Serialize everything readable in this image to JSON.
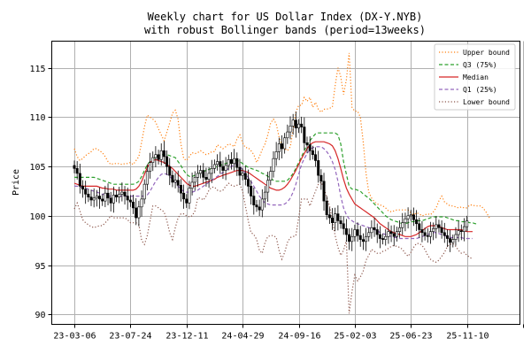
{
  "chart_data": {
    "type": "line",
    "title": [
      "Weekly chart for US Dollar Index (DX-Y.NYB)",
      "with robust Bollinger bands (period=13weeks)"
    ],
    "xlabel": "",
    "ylabel": "Price",
    "ylim": [
      89,
      117.7
    ],
    "y_ticks": [
      90,
      95,
      100,
      105,
      110,
      115
    ],
    "x_tick_labels": [
      "23-03-06",
      "23-07-24",
      "23-12-11",
      "24-04-29",
      "24-09-16",
      "25-02-03",
      "25-06-23",
      "25-11-10",
      ""
    ],
    "grid": true,
    "legend_position": "top-right",
    "week_count": 155,
    "colors": {
      "upper": "#ff7f0e",
      "q3": "#2ca02c",
      "median": "#d62728",
      "q1": "#9467bd",
      "lower": "#8c564b",
      "candle": "#000000"
    },
    "series": [
      {
        "key": "upper",
        "name": "Upper bound",
        "style": "dotted",
        "values": [
          106.8,
          106.0,
          105.6,
          105.8,
          106.1,
          106.3,
          106.5,
          106.8,
          106.8,
          106.6,
          106.4,
          106.0,
          105.5,
          105.2,
          105.3,
          105.3,
          105.3,
          105.2,
          105.3,
          105.3,
          105.4,
          105.2,
          105.6,
          106.0,
          107.5,
          109.0,
          110.2,
          110.0,
          109.8,
          109.5,
          108.8,
          108.2,
          107.6,
          108.5,
          109.4,
          110.4,
          110.7,
          109.8,
          107.3,
          105.8,
          105.6,
          106.0,
          106.4,
          106.3,
          106.4,
          106.6,
          106.4,
          106.2,
          106.3,
          106.5,
          106.5,
          107.2,
          107.0,
          106.8,
          107.0,
          107.3,
          107.2,
          107.0,
          107.8,
          108.2,
          107.4,
          106.9,
          106.9,
          106.6,
          106.2,
          105.4,
          106.0,
          106.7,
          107.3,
          108.2,
          109.4,
          109.8,
          109.3,
          108.0,
          107.1,
          106.8,
          106.6,
          107.0,
          108.7,
          110.5,
          111.2,
          111.2,
          112.0,
          111.6,
          112.0,
          111.0,
          111.5,
          110.8,
          110.5,
          110.8,
          110.8,
          110.9,
          111.0,
          113.2,
          115.0,
          114.1,
          112.3,
          113.8,
          116.5,
          111.0,
          110.6,
          110.6,
          110.0,
          107.5,
          104.3,
          102.4,
          101.8,
          101.4,
          101.2,
          101.1,
          101.0,
          100.8,
          100.5,
          100.4,
          100.5,
          100.6,
          100.6,
          100.6,
          100.6,
          100.6,
          100.3,
          100.1,
          100.3,
          100.2,
          100.0,
          100.1,
          100.2,
          100.1,
          100.4,
          100.8,
          101.5,
          102.0,
          101.4,
          101.2,
          101.0,
          101.0,
          100.9,
          100.8,
          100.9,
          100.8,
          100.8,
          101.1,
          101.1,
          101.0,
          101.0,
          101.0,
          100.7,
          100.3,
          99.8,
          null,
          null,
          null,
          null,
          null,
          null
        ]
      },
      {
        "key": "q3",
        "name": "Q3 (75%)",
        "style": "dashed",
        "values": [
          103.9,
          103.9,
          103.9,
          103.9,
          103.9,
          103.9,
          103.9,
          103.9,
          103.8,
          103.7,
          103.6,
          103.5,
          103.4,
          103.3,
          103.2,
          103.2,
          103.2,
          103.2,
          103.2,
          103.2,
          103.2,
          103.2,
          103.3,
          103.5,
          104.0,
          104.6,
          105.2,
          105.5,
          105.7,
          106.0,
          106.1,
          106.2,
          106.2,
          106.2,
          106.1,
          106.0,
          105.9,
          105.5,
          105.1,
          104.6,
          104.2,
          104.0,
          104.0,
          104.1,
          104.2,
          104.4,
          104.5,
          104.6,
          104.7,
          104.8,
          104.9,
          105.0,
          105.1,
          105.2,
          105.3,
          105.4,
          105.5,
          105.6,
          105.6,
          105.5,
          105.3,
          105.1,
          104.9,
          104.8,
          104.7,
          104.6,
          104.5,
          104.3,
          104.2,
          104.0,
          103.8,
          103.6,
          103.5,
          103.5,
          103.5,
          103.5,
          103.6,
          103.9,
          104.3,
          104.8,
          105.4,
          106.0,
          106.6,
          107.2,
          107.6,
          108.0,
          108.3,
          108.4,
          108.4,
          108.4,
          108.4,
          108.4,
          108.4,
          108.4,
          108.2,
          107.3,
          105.5,
          104.2,
          103.0,
          102.7,
          102.7,
          102.6,
          102.5,
          102.2,
          102.0,
          101.8,
          101.5,
          101.2,
          100.9,
          100.6,
          100.3,
          100.0,
          99.8,
          99.6,
          99.5,
          99.4,
          99.3,
          99.2,
          99.2,
          99.3,
          99.4,
          99.4,
          99.5,
          99.5,
          99.5,
          99.6,
          99.7,
          99.8,
          99.9,
          99.9,
          99.9,
          99.9,
          99.9,
          99.8,
          99.7,
          99.6,
          99.5,
          99.5,
          99.4,
          99.4,
          99.4,
          99.3,
          99.3,
          99.2,
          99.2,
          null,
          null,
          null,
          null,
          null,
          null,
          null,
          null,
          null,
          null
        ]
      },
      {
        "key": "median",
        "name": "Median",
        "style": "solid",
        "values": [
          103.3,
          103.2,
          103.1,
          103.0,
          103.0,
          103.0,
          103.0,
          103.0,
          103.0,
          102.9,
          102.8,
          102.8,
          102.7,
          102.7,
          102.7,
          102.6,
          102.6,
          102.6,
          102.6,
          102.6,
          102.6,
          102.6,
          102.7,
          103.0,
          103.5,
          104.2,
          104.9,
          105.4,
          105.6,
          105.7,
          105.6,
          105.5,
          105.4,
          105.2,
          105.0,
          104.8,
          104.5,
          104.2,
          103.9,
          103.6,
          103.3,
          103.1,
          103.0,
          103.0,
          103.1,
          103.2,
          103.3,
          103.4,
          103.5,
          103.6,
          103.7,
          103.9,
          104.0,
          104.1,
          104.2,
          104.3,
          104.4,
          104.5,
          104.6,
          104.6,
          104.6,
          104.5,
          104.4,
          104.2,
          104.0,
          103.8,
          103.6,
          103.4,
          103.2,
          103.0,
          102.8,
          102.7,
          102.6,
          102.6,
          102.7,
          102.9,
          103.2,
          103.6,
          104.1,
          104.6,
          105.2,
          105.8,
          106.3,
          106.8,
          107.2,
          107.4,
          107.5,
          107.5,
          107.5,
          107.5,
          107.4,
          107.3,
          107.1,
          106.6,
          105.8,
          104.8,
          103.7,
          102.8,
          102.2,
          101.7,
          101.2,
          101.0,
          100.8,
          100.6,
          100.4,
          100.2,
          100.0,
          99.8,
          99.5,
          99.2,
          99.0,
          98.8,
          98.6,
          98.4,
          98.3,
          98.2,
          98.1,
          98.0,
          97.9,
          97.9,
          97.9,
          98.0,
          98.1,
          98.3,
          98.5,
          98.7,
          98.9,
          99.0,
          99.0,
          99.0,
          98.9,
          98.8,
          98.7,
          98.6,
          98.6,
          98.6,
          98.6,
          98.6,
          98.6,
          98.5,
          98.4,
          98.4,
          98.4,
          null,
          null,
          null,
          null,
          null,
          null,
          null,
          null,
          null,
          null,
          null
        ]
      },
      {
        "key": "q1",
        "name": "Q1 (25%)",
        "style": "dashed",
        "values": [
          103.0,
          103.0,
          102.9,
          102.9,
          102.8,
          102.7,
          102.6,
          102.5,
          102.4,
          102.3,
          102.2,
          102.1,
          102.0,
          102.0,
          102.0,
          102.0,
          102.0,
          102.0,
          102.0,
          102.0,
          102.0,
          102.0,
          102.0,
          102.0,
          102.0,
          102.0,
          102.1,
          102.5,
          103.0,
          103.5,
          103.9,
          104.2,
          104.3,
          104.2,
          104.0,
          103.7,
          103.4,
          103.0,
          102.7,
          102.5,
          102.4,
          102.4,
          102.4,
          102.5,
          102.6,
          102.8,
          103.0,
          103.2,
          103.4,
          103.6,
          103.8,
          104.0,
          104.2,
          104.4,
          104.6,
          104.8,
          105.0,
          105.2,
          105.2,
          105.0,
          104.7,
          104.3,
          103.9,
          103.5,
          103.0,
          102.5,
          102.0,
          101.6,
          101.3,
          101.2,
          101.1,
          101.1,
          101.1,
          101.1,
          101.1,
          101.2,
          101.4,
          101.8,
          102.4,
          103.2,
          104.2,
          105.2,
          105.8,
          106.3,
          106.7,
          106.9,
          107.0,
          107.0,
          107.0,
          106.8,
          106.5,
          106.1,
          105.5,
          104.7,
          103.5,
          102.0,
          100.8,
          100.1,
          99.7,
          99.5,
          99.3,
          99.2,
          99.1,
          99.0,
          98.9,
          98.8,
          98.7,
          98.6,
          98.5,
          98.3,
          98.2,
          98.1,
          98.0,
          97.9,
          97.8,
          97.8,
          97.7,
          97.7,
          97.7,
          97.7,
          97.7,
          97.7,
          97.7,
          97.8,
          97.9,
          98.0,
          98.1,
          98.2,
          98.3,
          98.3,
          98.2,
          98.1,
          98.0,
          97.9,
          97.8,
          97.8,
          97.8,
          97.8,
          97.8,
          97.7,
          97.7,
          97.7,
          97.7,
          null,
          null,
          null,
          null,
          null,
          null,
          null,
          null,
          null,
          null,
          null,
          null
        ]
      },
      {
        "key": "lower",
        "name": "Lower bound",
        "style": "dotted",
        "values": [
          100.7,
          101.3,
          100.5,
          99.6,
          99.3,
          99.1,
          98.9,
          98.8,
          98.9,
          99.0,
          99.0,
          99.3,
          99.6,
          100.0,
          99.8,
          99.8,
          99.8,
          99.8,
          99.8,
          99.6,
          99.3,
          99.3,
          99.3,
          99.1,
          97.5,
          97.1,
          98.0,
          99.5,
          101.0,
          101.0,
          100.8,
          100.6,
          100.4,
          99.5,
          98.3,
          97.6,
          98.8,
          99.8,
          100.2,
          100.2,
          100.0,
          99.9,
          100.0,
          100.5,
          101.8,
          101.8,
          101.6,
          102.0,
          102.6,
          102.9,
          102.9,
          102.6,
          102.5,
          102.6,
          103.0,
          103.3,
          103.1,
          103.0,
          103.1,
          103.2,
          102.5,
          101.0,
          99.5,
          98.3,
          98.1,
          97.6,
          96.5,
          96.2,
          97.3,
          97.9,
          98.0,
          98.0,
          97.8,
          96.5,
          95.6,
          96.3,
          97.3,
          97.8,
          97.9,
          98.0,
          99.8,
          101.7,
          101.7,
          101.7,
          101.0,
          101.8,
          102.5,
          103.2,
          103.4,
          102.8,
          101.9,
          101.0,
          99.5,
          98.0,
          96.8,
          96.0,
          96.5,
          97.5,
          90.1,
          92.3,
          94.0,
          93.4,
          93.8,
          94.4,
          95.5,
          96.0,
          96.6,
          96.4,
          96.2,
          96.2,
          96.4,
          96.5,
          96.7,
          96.9,
          97.0,
          96.9,
          96.8,
          96.6,
          96.2,
          95.9,
          96.3,
          96.8,
          97.2,
          97.2,
          97.0,
          96.6,
          96.0,
          95.6,
          95.4,
          95.3,
          95.5,
          95.9,
          96.3,
          96.9,
          97.1,
          97.2,
          96.9,
          96.5,
          96.2,
          96.3,
          96.0,
          95.8,
          95.6,
          null,
          null,
          null,
          null,
          null,
          null,
          null,
          null,
          null,
          null,
          null,
          null,
          null
        ]
      }
    ],
    "candles_close": [
      104.8,
      104.3,
      103.0,
      102.7,
      102.2,
      101.9,
      101.6,
      101.8,
      102.0,
      101.7,
      101.5,
      102.3,
      101.8,
      101.3,
      102.1,
      101.9,
      102.2,
      102.4,
      102.0,
      101.6,
      101.4,
      100.8,
      99.8,
      100.9,
      101.7,
      103.2,
      104.5,
      105.4,
      105.9,
      106.2,
      105.7,
      106.6,
      106.0,
      105.0,
      104.1,
      103.4,
      103.6,
      103.1,
      102.3,
      101.7,
      101.3,
      102.8,
      103.4,
      103.9,
      104.3,
      104.6,
      103.9,
      103.7,
      104.3,
      104.8,
      105.2,
      105.5,
      105.0,
      104.6,
      105.1,
      105.7,
      105.3,
      105.8,
      104.9,
      104.1,
      104.3,
      103.7,
      103.0,
      102.0,
      101.1,
      100.9,
      100.6,
      101.7,
      102.4,
      103.6,
      104.5,
      105.8,
      106.5,
      107.3,
      106.8,
      107.9,
      108.5,
      109.1,
      109.7,
      108.9,
      109.3,
      109.0,
      107.4,
      107.2,
      106.6,
      106.2,
      105.6,
      104.1,
      103.5,
      101.5,
      100.1,
      99.8,
      99.3,
      100.2,
      99.5,
      99.2,
      98.7,
      98.1,
      97.4,
      97.9,
      98.6,
      98.0,
      97.6,
      97.4,
      97.9,
      98.3,
      98.8,
      98.6,
      98.1,
      97.7,
      97.6,
      97.9,
      98.4,
      98.2,
      97.9,
      98.4,
      98.8,
      99.3,
      99.7,
      100.0,
      100.1,
      99.6,
      99.2,
      98.6,
      98.3,
      98.0,
      97.9,
      98.4,
      98.7,
      99.1,
      98.8,
      98.3,
      98.0,
      97.7,
      97.3,
      97.6,
      98.1,
      98.5,
      98.4,
      98.9,
      99.5,
      null,
      null,
      null,
      null,
      null,
      null,
      null,
      null,
      null,
      null,
      null,
      null
    ]
  }
}
